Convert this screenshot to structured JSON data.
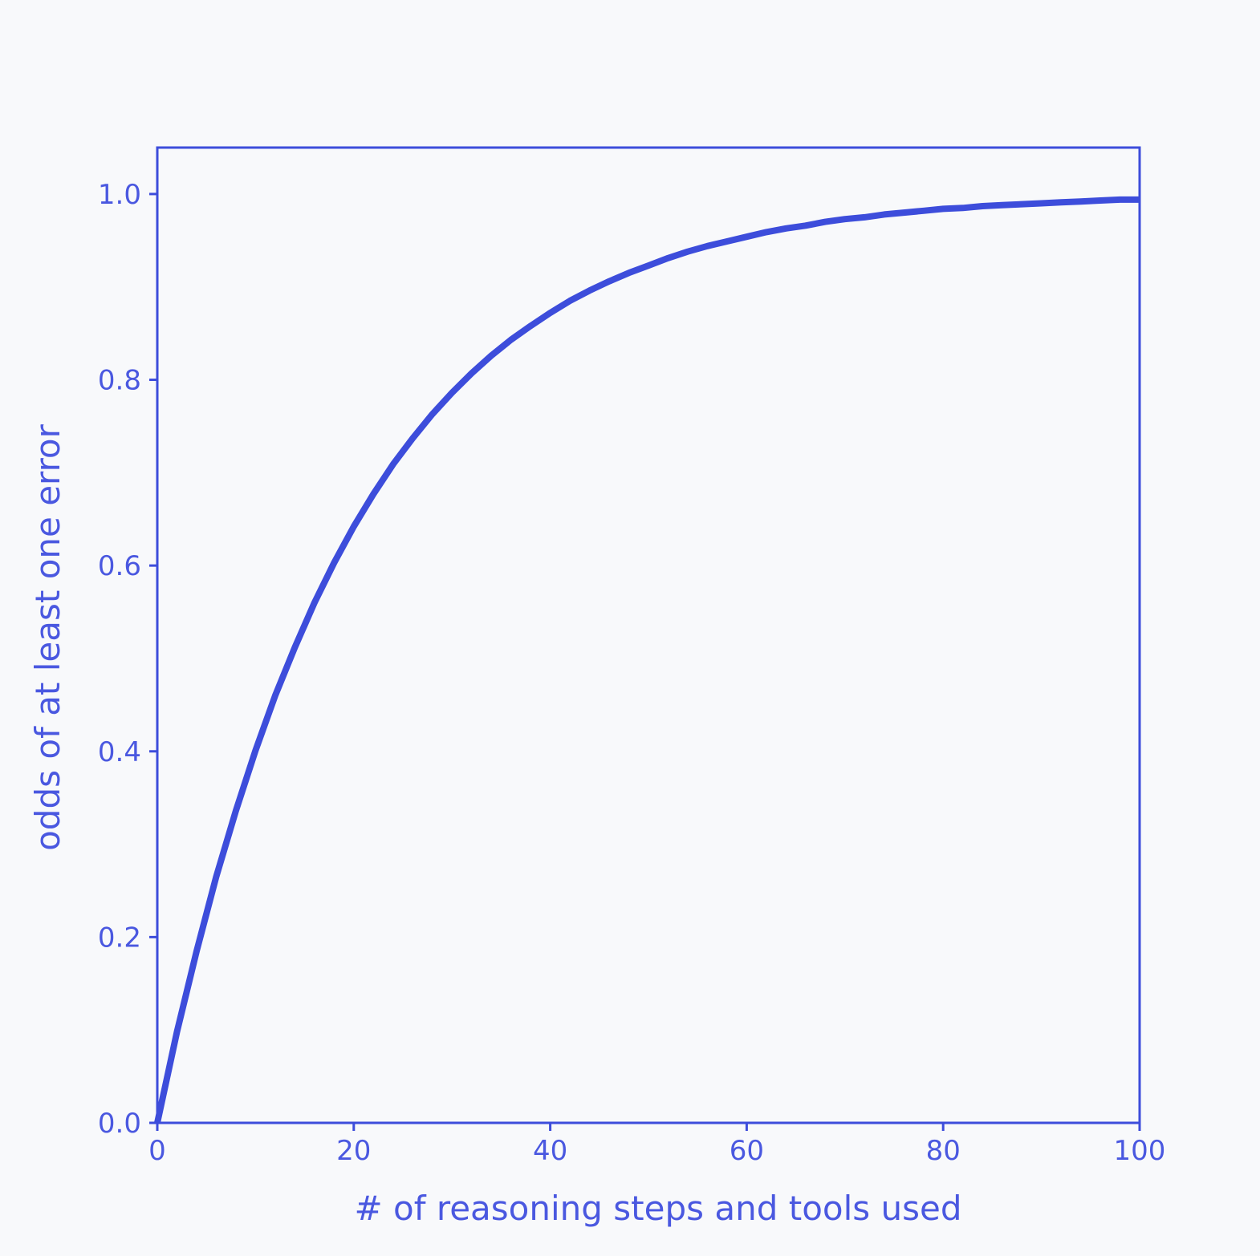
{
  "colors": {
    "background": "#f8f9fb",
    "accent": "#3d4ddb",
    "text": "#4a58e0"
  },
  "chart_data": {
    "type": "line",
    "title": "",
    "xlabel": "# of reasoning steps and tools used",
    "ylabel": "odds of at least one error",
    "xlim": [
      0,
      100
    ],
    "ylim": [
      0.0,
      1.05
    ],
    "xticks": [
      0,
      20,
      40,
      60,
      80,
      100
    ],
    "xtick_labels": [
      "0",
      "20",
      "40",
      "60",
      "80",
      "100"
    ],
    "yticks": [
      0.0,
      0.2,
      0.4,
      0.6,
      0.8,
      1.0
    ],
    "ytick_labels": [
      "0.0",
      "0.2",
      "0.4",
      "0.6",
      "0.8",
      "1.0"
    ],
    "grid": false,
    "legend": null,
    "series": [
      {
        "x": [
          0,
          2,
          4,
          6,
          8,
          10,
          12,
          14,
          16,
          18,
          20,
          22,
          24,
          26,
          28,
          30,
          32,
          34,
          36,
          38,
          40,
          42,
          44,
          46,
          48,
          50,
          52,
          54,
          56,
          58,
          60,
          62,
          64,
          66,
          68,
          70,
          72,
          74,
          76,
          78,
          80,
          82,
          84,
          86,
          88,
          90,
          92,
          94,
          96,
          98,
          100
        ],
        "y": [
          0.0,
          0.098,
          0.185,
          0.265,
          0.336,
          0.401,
          0.46,
          0.512,
          0.56,
          0.603,
          0.642,
          0.677,
          0.709,
          0.737,
          0.763,
          0.786,
          0.807,
          0.826,
          0.843,
          0.858,
          0.872,
          0.885,
          0.896,
          0.906,
          0.915,
          0.923,
          0.931,
          0.938,
          0.944,
          0.949,
          0.954,
          0.959,
          0.963,
          0.966,
          0.97,
          0.973,
          0.975,
          0.978,
          0.98,
          0.982,
          0.984,
          0.985,
          0.987,
          0.988,
          0.989,
          0.99,
          0.991,
          0.992,
          0.993,
          0.994,
          0.994
        ]
      }
    ]
  }
}
